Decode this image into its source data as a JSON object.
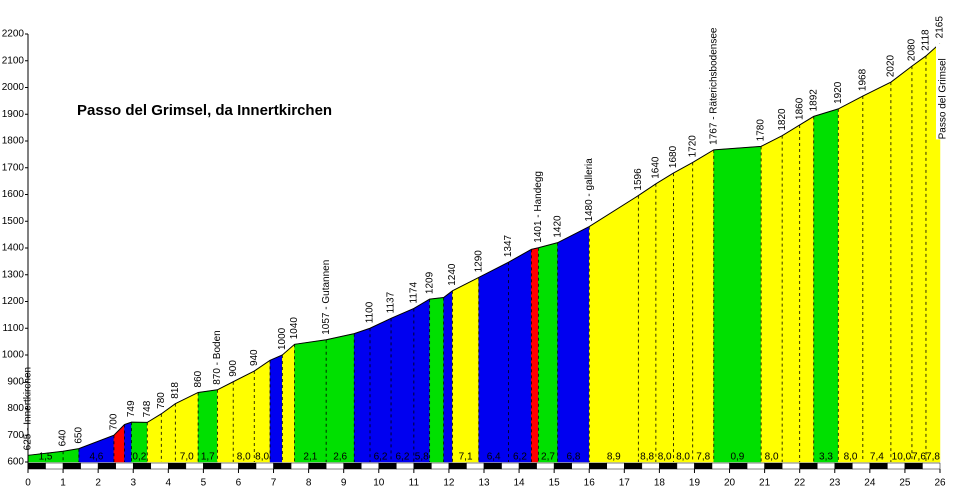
{
  "chart_data": {
    "type": "profile",
    "title": "Passo del Grimsel, da Innertkirchen",
    "summit_label": "Passo del Grimsel",
    "x": [
      0,
      1.0,
      1.45,
      2.45,
      2.75,
      2.95,
      3.4,
      3.8,
      4.2,
      4.85,
      5.4,
      5.85,
      6.45,
      6.9,
      7.25,
      7.6,
      8.5,
      9.3,
      9.75,
      10.35,
      11.0,
      11.45,
      11.85,
      12.1,
      12.85,
      13.7,
      14.35,
      14.55,
      15.1,
      16.0,
      17.4,
      17.9,
      18.4,
      18.95,
      19.55,
      20.9,
      21.5,
      22.0,
      22.4,
      23.1,
      23.8,
      24.6,
      25.2,
      25.6,
      26.0
    ],
    "values": [
      625,
      640,
      650,
      700,
      740,
      749,
      748,
      780,
      818,
      860,
      870,
      900,
      940,
      980,
      1000,
      1040,
      1057,
      1080,
      1100,
      1137,
      1174,
      1209,
      1215,
      1240,
      1290,
      1347,
      1395,
      1401,
      1420,
      1480,
      1596,
      1640,
      1680,
      1720,
      1767,
      1780,
      1820,
      1860,
      1892,
      1920,
      1968,
      2020,
      2080,
      2118,
      2165
    ],
    "point_labels": [
      "625 - Innertkirchen",
      "640",
      "650",
      "700",
      null,
      "749",
      "748",
      "780",
      "818",
      "860",
      "870 - Boden",
      "900",
      "940",
      null,
      "1000",
      "1040",
      "1057 - Gutannen",
      null,
      "1100",
      "1137",
      "1174",
      "1209",
      null,
      "1240",
      "1290",
      "1347",
      null,
      "1401 - Handegg",
      "1420",
      "1480 - galleria",
      "1596",
      "1640",
      "1680",
      "1720",
      "1767 - Räterichsbodensee",
      "1780",
      "1820",
      "1860",
      "1892",
      "1920",
      "1968",
      "2020",
      "2080",
      "2118",
      "2165"
    ],
    "segment_colors": [
      "#00e000",
      "#00e000",
      "#0000f0",
      "#ff0000",
      "#0000f0",
      "#00e000",
      "#ffff00",
      "#ffff00",
      "#ffff00",
      "#00e000",
      "#ffff00",
      "#ffff00",
      "#ffff00",
      "#0000f0",
      "#ffff00",
      "#00e000",
      "#00e000",
      "#0000f0",
      "#0000f0",
      "#0000f0",
      "#0000f0",
      "#00e000",
      "#0000f0",
      "#ffff00",
      "#0000f0",
      "#0000f0",
      "#ff0000",
      "#00e000",
      "#0000f0",
      "#ffff00",
      "#ffff00",
      "#ffff00",
      "#ffff00",
      "#ffff00",
      "#00e000",
      "#ffff00",
      "#ffff00",
      "#ffff00",
      "#00e000",
      "#ffff00",
      "#ffff00",
      "#ffff00",
      "#ffff00",
      "#ffff00"
    ],
    "segment_labels": [
      "1,5",
      null,
      "4,6",
      null,
      null,
      "0,2",
      null,
      null,
      "7,0",
      "1,7",
      null,
      "8,0",
      "8,0",
      null,
      null,
      "2,1",
      "2,6",
      null,
      "6,2",
      "6,2",
      "5,8",
      null,
      null,
      "7,1",
      "6,4",
      "6,2",
      null,
      "2,7",
      "6,8",
      "8,9",
      "8,8",
      "8,0",
      "8,0",
      "7,8",
      "0,9",
      "8,0",
      null,
      null,
      "3,3",
      "8,0",
      "7,4",
      "10,0",
      "7,6",
      "7,8"
    ],
    "xlim": [
      0,
      26
    ],
    "ylim": [
      600,
      2200
    ],
    "xticks": [
      0,
      1,
      2,
      3,
      4,
      5,
      6,
      7,
      8,
      9,
      10,
      11,
      12,
      13,
      14,
      15,
      16,
      17,
      18,
      19,
      20,
      21,
      22,
      23,
      24,
      25,
      26
    ],
    "yticks": [
      600,
      700,
      800,
      900,
      1000,
      1100,
      1200,
      1300,
      1400,
      1500,
      1600,
      1700,
      1800,
      1900,
      2000,
      2100,
      2200
    ]
  }
}
